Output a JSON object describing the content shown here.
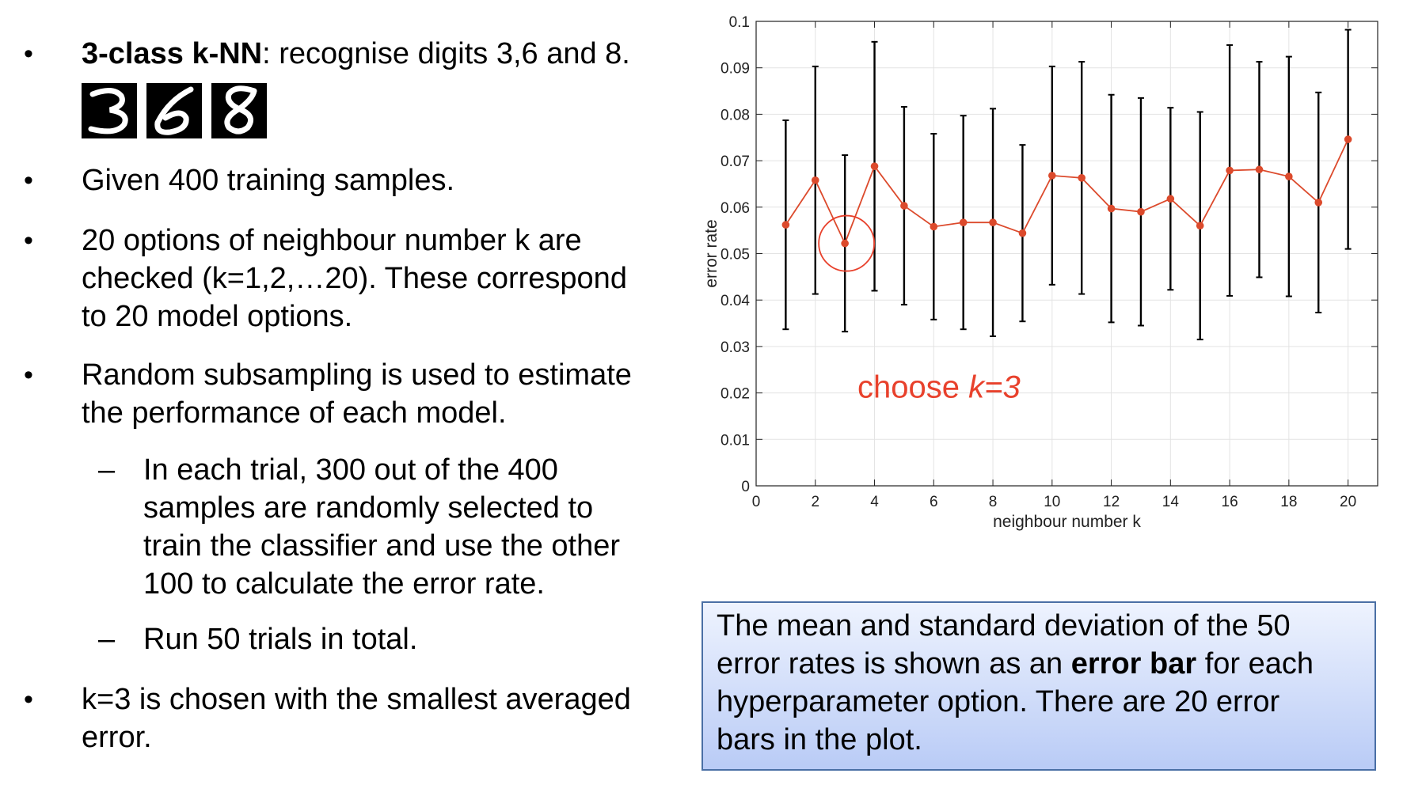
{
  "bullets": {
    "b1": {
      "bold": "3-class k-NN",
      "rest": ": recognise digits 3,6 and 8."
    },
    "digit_images": [
      "3",
      "6",
      "8"
    ],
    "b2": "Given 400 training samples.",
    "b3": [
      "20 options of neighbour number k are",
      "checked (k=1,2,…20). These correspond",
      "to 20 model options."
    ],
    "b4": [
      "Random subsampling is used to estimate",
      "the performance of each model."
    ],
    "s1": [
      "In each trial, 300 out of the 400",
      "samples are randomly selected to",
      "train the classifier and use the other",
      "100 to calculate the error rate."
    ],
    "s2": "Run 50 trials in total.",
    "b5": [
      "k=3 is chosen with the smallest averaged",
      "error."
    ],
    "bullet_symbol": "•",
    "dash_symbol": "–"
  },
  "callout": {
    "line1": "The mean and standard deviation of the 50",
    "line2_pre": "error rates is shown as an ",
    "line2_bold": "error bar",
    "line2_post": " for each",
    "line3": "hyperparameter option. There are 20 error",
    "line4": "bars in the plot."
  },
  "chart_data": {
    "type": "line",
    "xlabel": "neighbour number k",
    "ylabel": "error rate",
    "xlim": [
      0,
      21
    ],
    "ylim": [
      0,
      0.1
    ],
    "xticks": [
      0,
      2,
      4,
      6,
      8,
      10,
      12,
      14,
      16,
      18,
      20
    ],
    "yticks": [
      0,
      0.01,
      0.02,
      0.03,
      0.04,
      0.05,
      0.06,
      0.07,
      0.08,
      0.09,
      0.1
    ],
    "grid": true,
    "x": [
      1,
      2,
      3,
      4,
      5,
      6,
      7,
      8,
      9,
      10,
      11,
      12,
      13,
      14,
      15,
      16,
      17,
      18,
      19,
      20
    ],
    "series": [
      {
        "values": [
          0.0562,
          0.0658,
          0.0522,
          0.0688,
          0.0603,
          0.0558,
          0.0567,
          0.0567,
          0.0544,
          0.0668,
          0.0663,
          0.0597,
          0.059,
          0.0618,
          0.056,
          0.0679,
          0.0681,
          0.0666,
          0.061,
          0.0746
        ],
        "std": [
          0.0225,
          0.0245,
          0.019,
          0.0268,
          0.0213,
          0.02,
          0.023,
          0.0245,
          0.019,
          0.0235,
          0.025,
          0.0245,
          0.0245,
          0.0196,
          0.0245,
          0.027,
          0.0232,
          0.0258,
          0.0237,
          0.0236
        ],
        "color": "#dc4a2c",
        "errorbar_color": "#000000"
      }
    ],
    "annotation": {
      "text_pre": "choose ",
      "text_italic": "k=3",
      "x": 6.5,
      "y": 0.019,
      "color": "#e8412c"
    },
    "highlight": {
      "x": 3,
      "y": 0.0522,
      "color": "#e8412c"
    }
  }
}
